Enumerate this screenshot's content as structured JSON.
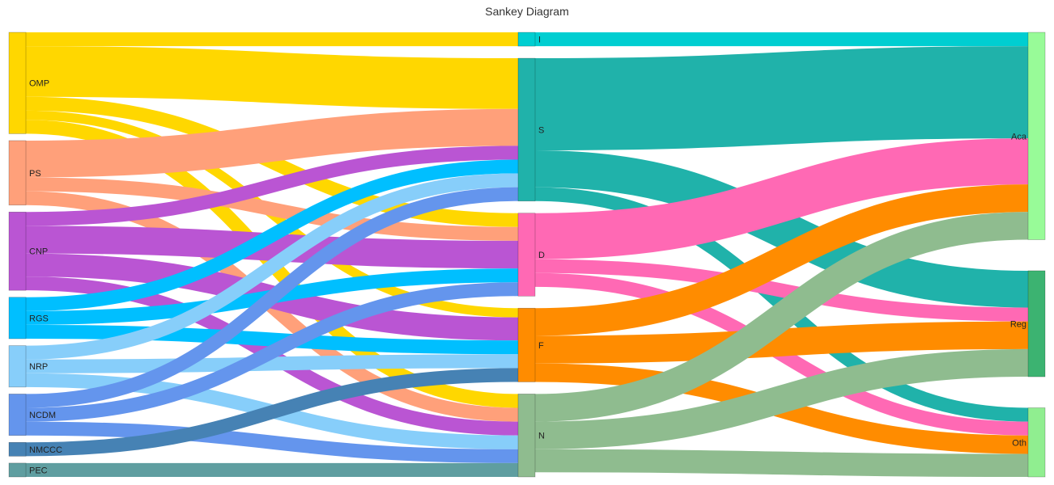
{
  "chart_data": {
    "type": "sankey",
    "title": "Sankey Diagram",
    "nodes": [
      {
        "id": "OMP",
        "label": "OMP",
        "color": "#FFD700",
        "column": 0
      },
      {
        "id": "PS",
        "label": "PS",
        "color": "#FFA07A",
        "column": 0
      },
      {
        "id": "CNP",
        "label": "CNP",
        "color": "#BA55D3",
        "column": 0
      },
      {
        "id": "RGS",
        "label": "RGS",
        "color": "#00BFFF",
        "column": 0
      },
      {
        "id": "NRP",
        "label": "NRP",
        "color": "#87CEFA",
        "column": 0
      },
      {
        "id": "NCDM",
        "label": "NCDM",
        "color": "#6495ED",
        "column": 0
      },
      {
        "id": "NMCCC",
        "label": "NMCCC",
        "color": "#4682B4",
        "column": 0
      },
      {
        "id": "PEC",
        "label": "PEC",
        "color": "#5F9EA0",
        "column": 0
      },
      {
        "id": "I",
        "label": "I",
        "color": "#00CED1",
        "column": 1
      },
      {
        "id": "S",
        "label": "S",
        "color": "#20B2AA",
        "column": 1
      },
      {
        "id": "D",
        "label": "D",
        "color": "#FF69B4",
        "column": 1
      },
      {
        "id": "F",
        "label": "F",
        "color": "#FF8C00",
        "column": 1
      },
      {
        "id": "N",
        "label": "N",
        "color": "#8FBC8F",
        "column": 1
      },
      {
        "id": "Aca",
        "label": "Aca",
        "color": "#98FB98",
        "column": 2
      },
      {
        "id": "Reg",
        "label": "Reg",
        "color": "#3CB371",
        "column": 2
      },
      {
        "id": "Oth",
        "label": "Oth",
        "color": "#90EE90",
        "column": 2
      }
    ],
    "links": [
      {
        "source": "OMP",
        "target": "I",
        "value": 3
      },
      {
        "source": "OMP",
        "target": "S",
        "value": 11
      },
      {
        "source": "OMP",
        "target": "D",
        "value": 3
      },
      {
        "source": "OMP",
        "target": "F",
        "value": 2
      },
      {
        "source": "OMP",
        "target": "N",
        "value": 3
      },
      {
        "source": "PS",
        "target": "S",
        "value": 8
      },
      {
        "source": "PS",
        "target": "D",
        "value": 3
      },
      {
        "source": "PS",
        "target": "N",
        "value": 3
      },
      {
        "source": "CNP",
        "target": "S",
        "value": 3
      },
      {
        "source": "CNP",
        "target": "D",
        "value": 6
      },
      {
        "source": "CNP",
        "target": "F",
        "value": 5
      },
      {
        "source": "CNP",
        "target": "N",
        "value": 3
      },
      {
        "source": "RGS",
        "target": "S",
        "value": 3
      },
      {
        "source": "RGS",
        "target": "D",
        "value": 3
      },
      {
        "source": "RGS",
        "target": "F",
        "value": 3
      },
      {
        "source": "NRP",
        "target": "S",
        "value": 3
      },
      {
        "source": "NRP",
        "target": "F",
        "value": 3
      },
      {
        "source": "NRP",
        "target": "N",
        "value": 3
      },
      {
        "source": "NCDM",
        "target": "S",
        "value": 3
      },
      {
        "source": "NCDM",
        "target": "D",
        "value": 3
      },
      {
        "source": "NCDM",
        "target": "N",
        "value": 3
      },
      {
        "source": "NMCCC",
        "target": "F",
        "value": 3
      },
      {
        "source": "PEC",
        "target": "N",
        "value": 3
      },
      {
        "source": "I",
        "target": "Aca",
        "value": 3
      },
      {
        "source": "S",
        "target": "Aca",
        "value": 20
      },
      {
        "source": "S",
        "target": "Reg",
        "value": 8
      },
      {
        "source": "S",
        "target": "Oth",
        "value": 3
      },
      {
        "source": "D",
        "target": "Aca",
        "value": 10
      },
      {
        "source": "D",
        "target": "Reg",
        "value": 3
      },
      {
        "source": "D",
        "target": "Oth",
        "value": 3
      },
      {
        "source": "F",
        "target": "Aca",
        "value": 6
      },
      {
        "source": "F",
        "target": "Reg",
        "value": 6
      },
      {
        "source": "F",
        "target": "Oth",
        "value": 4
      },
      {
        "source": "N",
        "target": "Aca",
        "value": 6
      },
      {
        "source": "N",
        "target": "Reg",
        "value": 6
      },
      {
        "source": "N",
        "target": "Oth",
        "value": 5
      }
    ]
  }
}
